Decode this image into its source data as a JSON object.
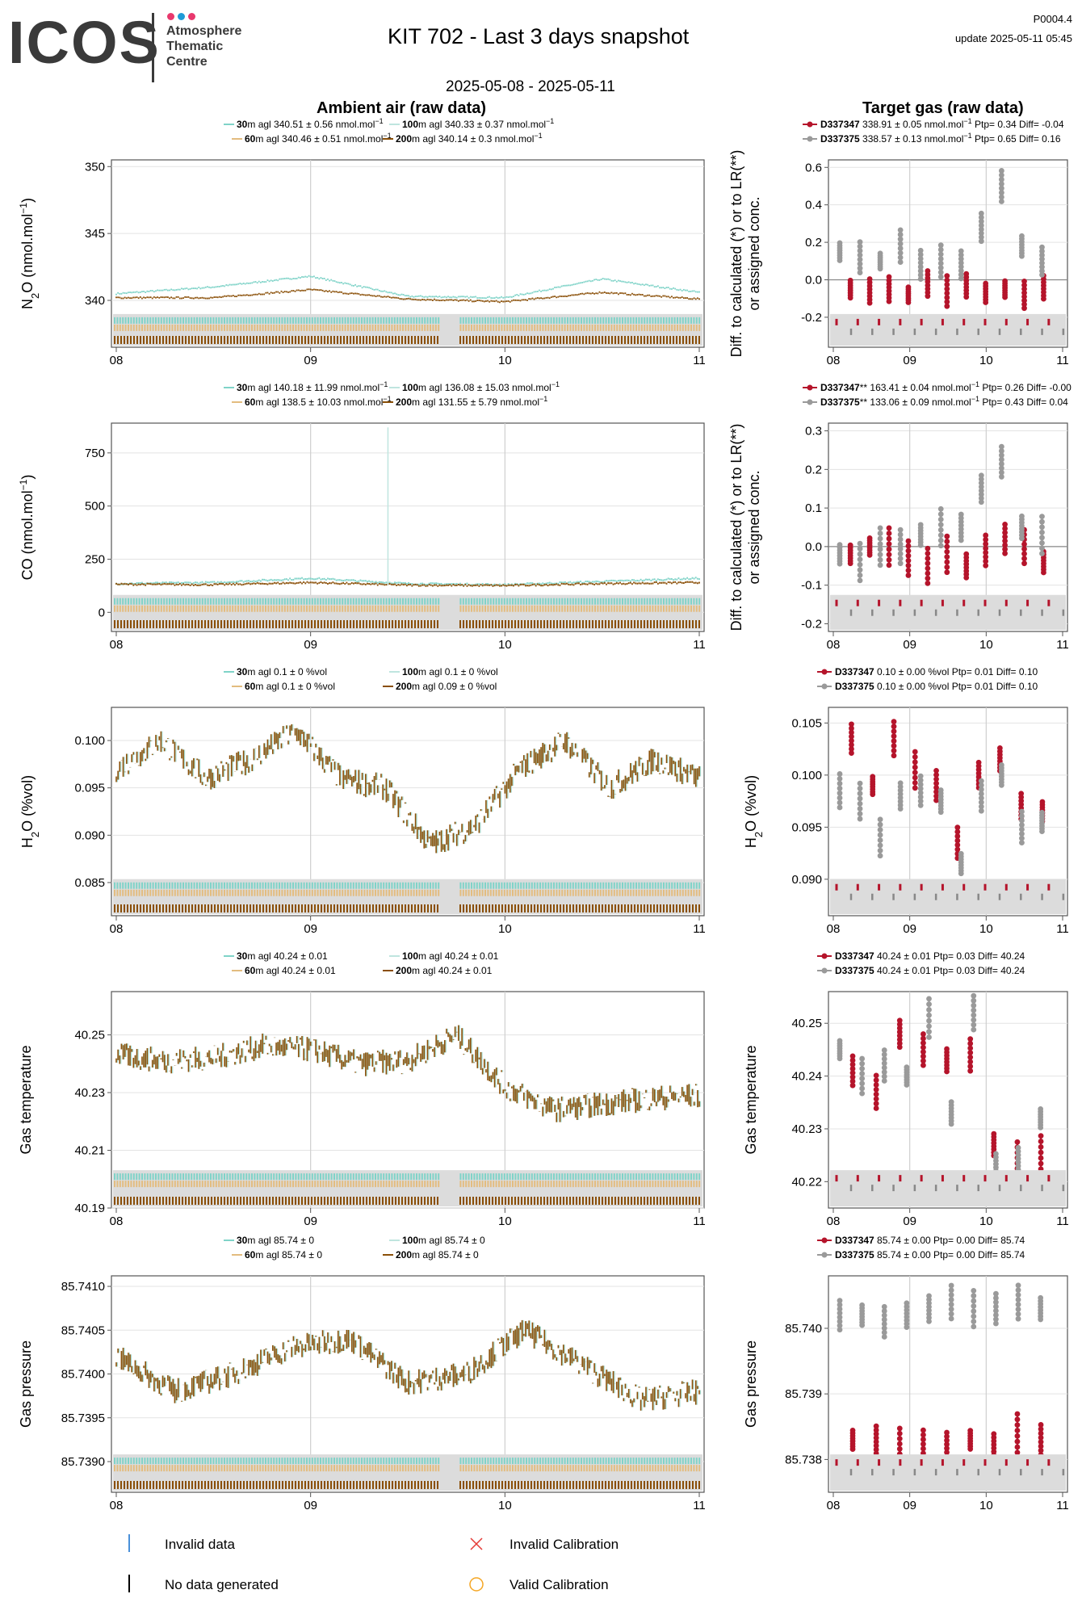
{
  "header": {
    "logo_main": "ICOS",
    "logo_sub": [
      "Atmosphere",
      "Thematic",
      "Centre"
    ],
    "logo_dot_colors": [
      "#e8386d",
      "#1f9bd7",
      "#e8386d"
    ],
    "title": "KIT 702 - Last 3 days snapshot",
    "date_range": "2025-05-08 - 2025-05-11",
    "code": "P0004.4",
    "update": "update  2025-05-11 05:45",
    "ambient_title": "Ambient air (raw data)",
    "target_title": "Target gas (raw data)"
  },
  "colors": {
    "30m": "#7fd3c8",
    "60m": "#e3bc7f",
    "100m": "#bfe5df",
    "200m": "#8a4f07",
    "target1": "#b5142b",
    "target2": "#9a9a9a"
  },
  "x_ticks": [
    "08",
    "09",
    "10",
    "11"
  ],
  "footer": {
    "invalid_data": "Invalid data",
    "no_data": "No data generated",
    "invalid_cal": "Invalid Calibration",
    "valid_cal": "Valid Calibration"
  },
  "chart_data": [
    {
      "id": "n2o-ambient",
      "type": "line",
      "ylabel": "N2O (nmol.mol-1)",
      "yticks": [
        "340",
        "345",
        "350"
      ],
      "ylim": [
        336.5,
        350.5
      ],
      "x": [
        "05-08 00:00",
        "05-08 12:00",
        "05-09 00:00",
        "05-09 12:00",
        "05-10 00:00",
        "05-10 12:00",
        "05-11 00:00"
      ],
      "legend": [
        {
          "h": "30",
          "t": "m agl 340.51 ± 0.56 nmol.mol",
          "s": "−1"
        },
        {
          "h": "100",
          "t": "m agl 340.33 ± 0.37 nmol.mol",
          "s": "−1"
        },
        {
          "h": "60",
          "t": "m agl 340.46 ± 0.51 nmol.mol",
          "s": "−1"
        },
        {
          "h": "200",
          "t": "m agl 340.14 ± 0.3 nmol.mol",
          "s": "−1"
        }
      ],
      "series": [
        {
          "name": "30m",
          "values": [
            340.5,
            341.0,
            341.8,
            340.3,
            340.2,
            341.6,
            340.6
          ]
        },
        {
          "name": "200m",
          "values": [
            340.2,
            340.2,
            340.8,
            340.1,
            339.9,
            340.6,
            340.1
          ]
        }
      ]
    },
    {
      "id": "n2o-target",
      "type": "scatter",
      "ylabel": "Diff. to calculated (*) or to LR(**) or assigned conc.",
      "yticks": [
        "-0.2",
        "0.0",
        "0.2",
        "0.4",
        "0.6"
      ],
      "ylim": [
        -0.36,
        0.64
      ],
      "legend": [
        {
          "n": "D337347",
          "t": " 338.91 ± 0.05 nmol.mol",
          "s": "−1",
          "e": " Ptp= 0.34 Diff= -0.04"
        },
        {
          "n": "D337375",
          "t": " 338.57 ± 0.13 nmol.mol",
          "s": "−1",
          "e": " Ptp= 0.65 Diff= 0.16"
        }
      ],
      "series": [
        {
          "name": "D337347",
          "values": [
            -0.05,
            -0.06,
            -0.05,
            -0.08,
            -0.02,
            -0.06,
            -0.03,
            -0.07,
            -0.05,
            -0.08,
            -0.04
          ]
        },
        {
          "name": "D337375",
          "values": [
            0.15,
            0.12,
            0.1,
            0.18,
            0.08,
            0.1,
            0.08,
            0.28,
            0.5,
            0.18,
            0.1
          ]
        }
      ]
    },
    {
      "id": "co-ambient",
      "type": "line",
      "ylabel": "CO (nmol.mol-1)",
      "yticks": [
        "0",
        "250",
        "500",
        "750"
      ],
      "ylim": [
        -90,
        890
      ],
      "legend": [
        {
          "h": "30",
          "t": "m agl 140.18 ± 11.99 nmol.mol",
          "s": "−1"
        },
        {
          "h": "100",
          "t": "m agl 136.08 ± 15.03 nmol.mol",
          "s": "−1"
        },
        {
          "h": "60",
          "t": "m agl 138.5 ± 10.03 nmol.mol",
          "s": "−1"
        },
        {
          "h": "200",
          "t": "m agl 131.55 ± 5.79 nmol.mol",
          "s": "−1"
        }
      ],
      "series": [
        {
          "name": "30m",
          "values": [
            135,
            140,
            160,
            135,
            130,
            145,
            160
          ]
        },
        {
          "name": "200m",
          "values": [
            132,
            130,
            140,
            128,
            126,
            135,
            140
          ]
        }
      ]
    },
    {
      "id": "co-target",
      "type": "scatter",
      "ylabel": "Diff. to calculated (*) or to LR(**) or assigned conc.",
      "yticks": [
        "-0.2",
        "-0.1",
        "0.0",
        "0.1",
        "0.2",
        "0.3"
      ],
      "ylim": [
        -0.22,
        0.32
      ],
      "legend": [
        {
          "n": "D337347",
          "t": "** 163.41 ± 0.04 nmol.mol",
          "s": "−1",
          "e": " Ptp= 0.26 Diff= -0.00"
        },
        {
          "n": "D337375",
          "t": "** 133.06 ± 0.09 nmol.mol",
          "s": "−1",
          "e": " Ptp= 0.43 Diff= 0.04"
        }
      ],
      "series": [
        {
          "name": "D337347",
          "values": [
            -0.02,
            0.0,
            0.0,
            -0.03,
            -0.05,
            -0.02,
            -0.05,
            -0.01,
            0.02,
            0.0,
            -0.04
          ]
        },
        {
          "name": "D337375",
          "values": [
            -0.02,
            -0.04,
            0.0,
            0.0,
            0.03,
            0.05,
            0.05,
            0.15,
            0.22,
            0.05,
            0.03
          ]
        }
      ]
    },
    {
      "id": "h2o-ambient",
      "type": "line",
      "ylabel": "H2O (%vol)",
      "yticks": [
        "0.085",
        "0.090",
        "0.095",
        "0.100"
      ],
      "ylim": [
        0.0815,
        0.1035
      ],
      "legend": [
        {
          "h": "30",
          "t": "m agl 0.1 ± 0 %vol"
        },
        {
          "h": "100",
          "t": "m agl 0.1 ± 0 %vol"
        },
        {
          "h": "60",
          "t": "m agl 0.1 ± 0 %vol"
        },
        {
          "h": "200",
          "t": "m agl 0.09 ± 0 %vol"
        }
      ],
      "series": [
        {
          "name": "200m",
          "values": [
            0.097,
            0.1,
            0.096,
            0.098,
            0.101,
            0.096,
            0.095,
            0.089,
            0.091,
            0.097,
            0.1,
            0.095,
            0.098,
            0.096
          ]
        }
      ]
    },
    {
      "id": "h2o-target",
      "type": "scatter",
      "ylabel": "H2O (%vol)",
      "yticks": [
        "0.090",
        "0.095",
        "0.100",
        "0.105"
      ],
      "ylim": [
        0.0865,
        0.1065
      ],
      "legend": [
        {
          "n": "D337347",
          "t": " 0.10 ± 0.00 %vol Ptp= 0.01 Diff= 0.10"
        },
        {
          "n": "D337375",
          "t": " 0.10 ± 0.00 %vol Ptp= 0.01 Diff= 0.10"
        }
      ],
      "series": [
        {
          "name": "D337347",
          "values": [
            0.1035,
            0.099,
            0.1035,
            0.1005,
            0.099,
            0.0935,
            0.1,
            0.1015,
            0.097,
            0.0965
          ]
        },
        {
          "name": "D337375",
          "values": [
            0.0985,
            0.0975,
            0.094,
            0.098,
            0.0985,
            0.0975,
            0.0915,
            0.098,
            0.1,
            0.095,
            0.0955
          ]
        }
      ]
    },
    {
      "id": "temp-ambient",
      "type": "line",
      "ylabel": "Gas temperature",
      "yticks": [
        "40.19",
        "40.21",
        "40.23",
        "40.25"
      ],
      "ylim": [
        40.19,
        40.265
      ],
      "legend": [
        {
          "h": "30",
          "t": "m agl 40.24 ± 0.01"
        },
        {
          "h": "100",
          "t": "m agl 40.24 ± 0.01"
        },
        {
          "h": "60",
          "t": "m agl 40.24 ± 0.01"
        },
        {
          "h": "200",
          "t": "m agl 40.24 ± 0.01"
        }
      ],
      "series": [
        {
          "name": "200m",
          "values": [
            40.243,
            40.241,
            40.242,
            40.246,
            40.245,
            40.24,
            40.241,
            40.25,
            40.232,
            40.224,
            40.226,
            40.228,
            40.229
          ]
        }
      ]
    },
    {
      "id": "temp-target",
      "type": "scatter",
      "ylabel": "Gas temperature",
      "yticks": [
        "40.22",
        "40.23",
        "40.24",
        "40.25"
      ],
      "ylim": [
        40.215,
        40.256
      ],
      "legend": [
        {
          "n": "D337347",
          "t": " 40.24 ± 0.01  Ptp= 0.03 Diff= 40.24"
        },
        {
          "n": "D337375",
          "t": " 40.24 ± 0.01  Ptp= 0.03 Diff= 40.24"
        }
      ],
      "series": [
        {
          "name": "D337347",
          "values": [
            40.241,
            40.237,
            40.248,
            40.245,
            40.243,
            40.244,
            40.227,
            40.224,
            40.225
          ]
        },
        {
          "name": "D337375",
          "values": [
            40.245,
            40.24,
            40.242,
            40.24,
            40.251,
            40.233,
            40.252,
            40.223,
            40.224,
            40.232
          ]
        }
      ]
    },
    {
      "id": "press-ambient",
      "type": "line",
      "ylabel": "Gas pressure",
      "yticks": [
        "85.7390",
        "85.7395",
        "85.7400",
        "85.7405",
        "85.7410"
      ],
      "ylim": [
        85.73865,
        85.74112
      ],
      "legend": [
        {
          "h": "30",
          "t": "m agl 85.74 ± 0"
        },
        {
          "h": "100",
          "t": "m agl 85.74 ± 0"
        },
        {
          "h": "60",
          "t": "m agl 85.74 ± 0"
        },
        {
          "h": "200",
          "t": "m agl 85.74 ± 0"
        }
      ],
      "series": [
        {
          "name": "200m",
          "values": [
            85.7402,
            85.7398,
            85.74,
            85.7403,
            85.7404,
            85.7399,
            85.74,
            85.7405,
            85.7401,
            85.7397,
            85.7398
          ]
        }
      ]
    },
    {
      "id": "press-target",
      "type": "scatter",
      "ylabel": "Gas pressure",
      "yticks": [
        "85.738",
        "85.739",
        "85.740"
      ],
      "ylim": [
        85.7375,
        85.7408
      ],
      "legend": [
        {
          "n": "D337347",
          "t": " 85.74 ± 0.00  Ptp= 0.00 Diff= 85.74"
        },
        {
          "n": "D337375",
          "t": " 85.74 ± 0.00  Ptp= 0.00 Diff= 85.74"
        }
      ],
      "series": [
        {
          "name": "D337347",
          "values": [
            85.7383,
            85.7383,
            85.7382,
            85.7382,
            85.7382,
            85.7383,
            85.7382,
            85.7384,
            85.7383
          ]
        },
        {
          "name": "D337375",
          "values": [
            85.7402,
            85.7402,
            85.7401,
            85.7402,
            85.7403,
            85.7404,
            85.7403,
            85.7403,
            85.7404,
            85.7403
          ]
        }
      ]
    }
  ]
}
